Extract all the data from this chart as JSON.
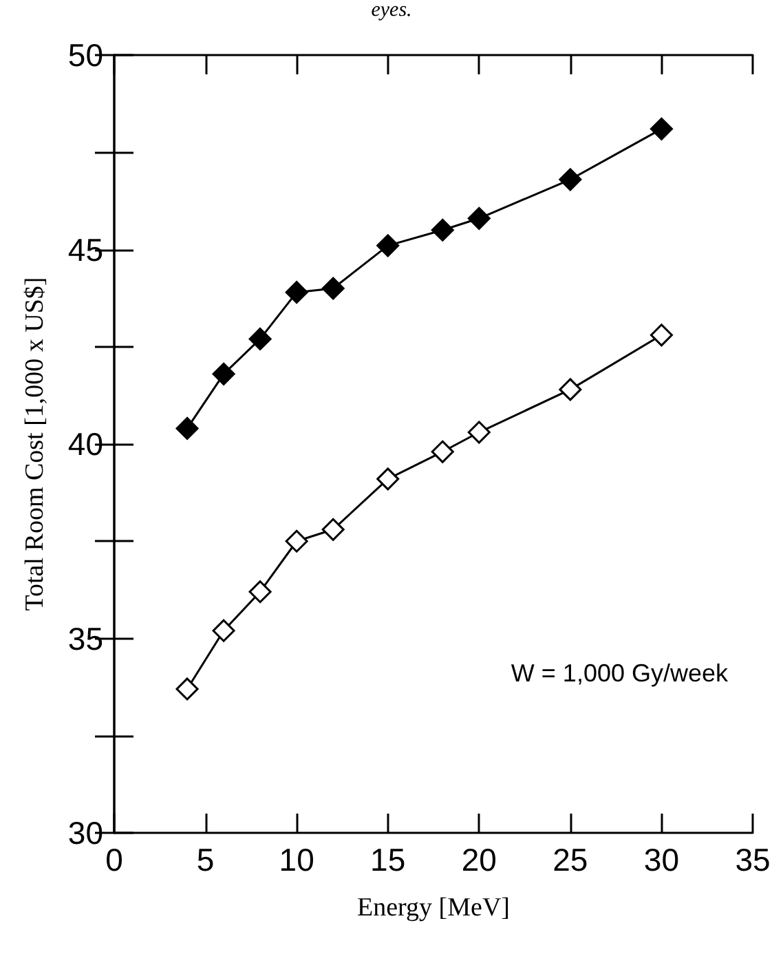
{
  "chart_data": {
    "type": "line",
    "xlabel": "Energy [MeV]",
    "ylabel": "Total Room Cost [1,000 x US$]",
    "x": [
      4,
      6,
      8,
      10,
      12,
      15,
      18,
      20,
      25,
      30
    ],
    "series": [
      {
        "color": "#000000",
        "values": [
          40.4,
          41.8,
          42.7,
          43.9,
          44.0,
          45.1,
          45.5,
          45.8,
          46.8,
          48.1
        ]
      },
      {
        "color": "#ffffff",
        "values": [
          33.7,
          35.2,
          36.2,
          37.5,
          37.8,
          39.1,
          39.8,
          40.3,
          41.4,
          42.8
        ]
      }
    ],
    "xlim": [
      0,
      35
    ],
    "xticks": [
      0,
      5,
      10,
      15,
      20,
      25,
      30,
      35
    ],
    "ylim": [
      30,
      50
    ],
    "yticks": [
      30,
      {
        "value": 32.5,
        "label": null
      },
      35,
      {
        "value": 37.5,
        "label": null
      },
      40,
      {
        "value": 42.5,
        "label": null
      },
      45,
      {
        "value": 47.5,
        "label": null
      },
      50
    ],
    "marker": "diamond",
    "line_style": "solid",
    "grid": false,
    "annotations": [
      "eyes.",
      "W = 1,000 Gy/week"
    ]
  }
}
